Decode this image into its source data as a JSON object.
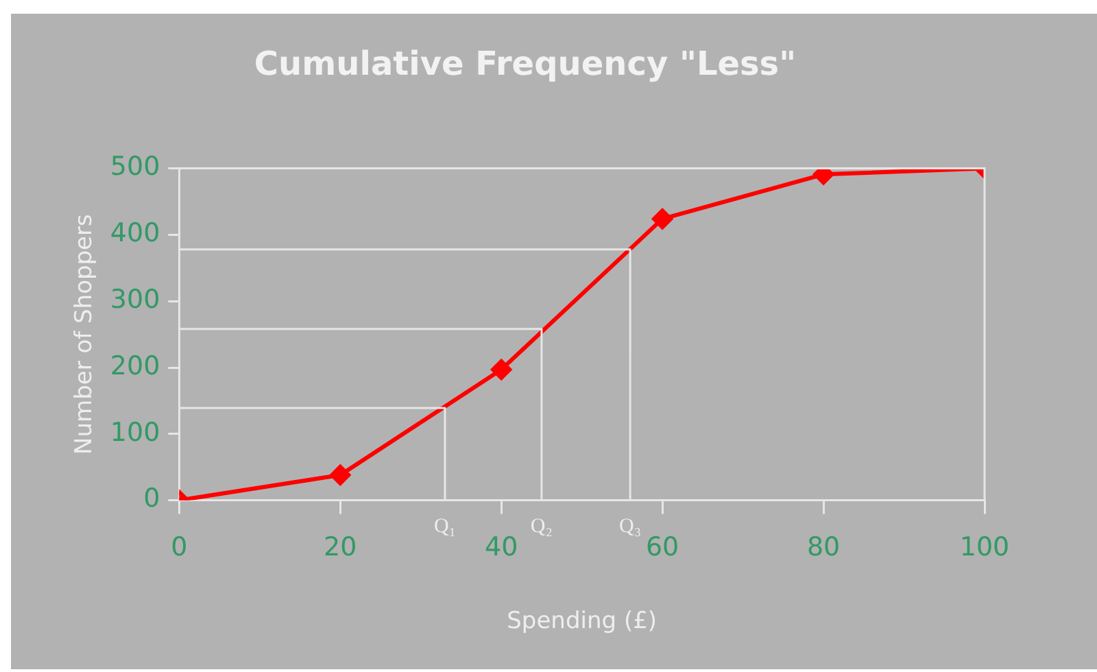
{
  "chart_data": {
    "type": "line",
    "title": "Cumulative Frequency \"Less\"",
    "xlabel": "Spending (£)",
    "ylabel": "Number of Shoppers",
    "xlim": [
      0,
      100
    ],
    "xticks": [
      0,
      20,
      40,
      60,
      80,
      100
    ],
    "ylim": [
      0,
      500
    ],
    "yticks": [
      0,
      100,
      200,
      300,
      400,
      500
    ],
    "grid": false,
    "legend": false,
    "marker": "diamond",
    "line_style": "solid",
    "series": [
      {
        "color": "#ff0000",
        "x": [
          0,
          20,
          40,
          60,
          80,
          100
        ],
        "values": [
          0,
          38,
          197,
          424,
          491,
          500
        ]
      },
      {
        "type": "line",
        "marker": "none",
        "color": "#e6e6e6",
        "x": [
          0,
          33,
          33
        ],
        "values": [
          139,
          139,
          0
        ]
      },
      {
        "type": "line",
        "marker": "none",
        "color": "#e6e6e6",
        "x": [
          0,
          45,
          45
        ],
        "values": [
          258,
          258,
          0
        ]
      },
      {
        "type": "line",
        "marker": "none",
        "color": "#e6e6e6",
        "x": [
          0,
          56,
          56
        ],
        "values": [
          378,
          378,
          0
        ]
      }
    ],
    "annotations": [
      {
        "text": "Q₁",
        "x": 33,
        "y": 0
      },
      {
        "text": "Q₂",
        "x": 45,
        "y": 0
      },
      {
        "text": "Q₃",
        "x": 56,
        "y": 0
      }
    ]
  }
}
